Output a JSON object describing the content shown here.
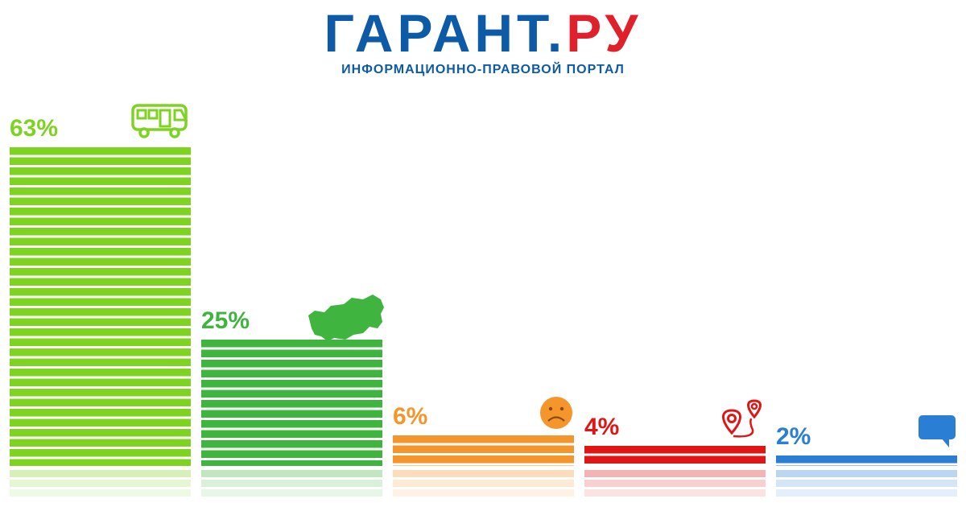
{
  "header": {
    "logo_main": "ГАРАНТ",
    "logo_dot": ".",
    "logo_suffix": "РУ",
    "tagline": "ИНФОРМАЦИОННО-ПРАВОВОЙ ПОРТАЛ"
  },
  "chart_data": {
    "type": "bar",
    "title": "",
    "xlabel": "",
    "ylabel": "",
    "ylim": [
      0,
      63
    ],
    "grid": false,
    "legend": "none",
    "values": [
      63,
      25,
      6,
      4,
      2
    ],
    "value_labels": [
      "63%",
      "25%",
      "6%",
      "4%",
      "2%"
    ],
    "colors": [
      "#7ed321",
      "#3fb43f",
      "#f5962d",
      "#e01515",
      "#2a7fd4"
    ],
    "icons": [
      "bus-icon",
      "russia-map-icon",
      "sad-face-icon",
      "location-pins-icon",
      "chat-bubble-icon"
    ]
  }
}
